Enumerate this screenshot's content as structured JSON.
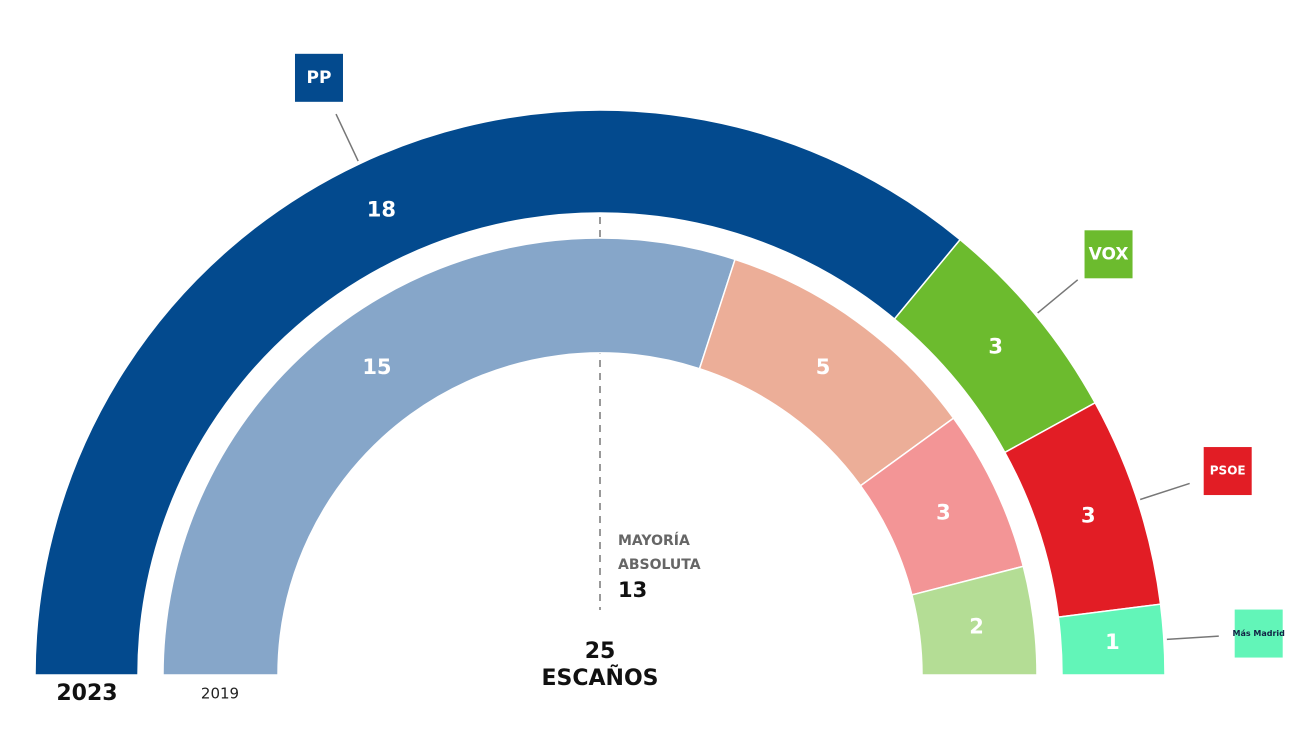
{
  "chart_data": {
    "type": "hemicycle",
    "total": {
      "value": 25,
      "label": "ESCAÑOS"
    },
    "majority": {
      "label_line1": "MAYORÍA",
      "label_line2": "ABSOLUTA",
      "value": 13
    },
    "rings": [
      {
        "name": "2023",
        "segments": [
          {
            "label": "PP",
            "color": "#034a8e",
            "value": 18
          },
          {
            "label": "VOX",
            "color": "#6cbb2e",
            "value": 3
          },
          {
            "label": "PSOE",
            "color": "#e21d25",
            "value": 3
          },
          {
            "label": "Más Madrid",
            "color": "#62f5b8",
            "value": 1
          }
        ]
      },
      {
        "name": "2019",
        "segments": [
          {
            "color": "#86a6c9",
            "value": 15
          },
          {
            "color": "#ecae98",
            "value": 5
          },
          {
            "color": "#f39596",
            "value": 3
          },
          {
            "color": "#b4dd95",
            "value": 2
          }
        ]
      }
    ]
  }
}
